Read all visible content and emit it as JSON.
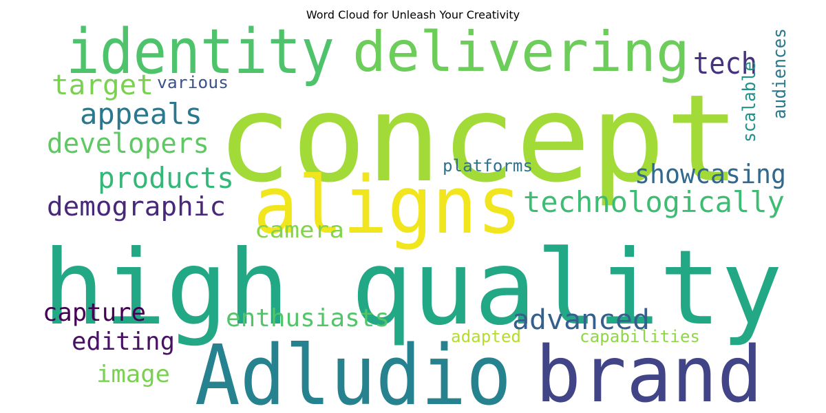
{
  "chart_data": {
    "type": "wordcloud",
    "title": "Word Cloud for Unleash Your Creativity",
    "words": [
      {
        "text": "concept",
        "color": "#a2da37"
      },
      {
        "text": "high quality",
        "color": "#22a884"
      },
      {
        "text": "identity",
        "color": "#4ec36b"
      },
      {
        "text": "delivering",
        "color": "#6ccd5a"
      },
      {
        "text": "aligns",
        "color": "#f1e51d"
      },
      {
        "text": "Adludio",
        "color": "#26828e"
      },
      {
        "text": "brand",
        "color": "#414487"
      },
      {
        "text": "tech",
        "color": "#46327e"
      },
      {
        "text": "target",
        "color": "#7ad151"
      },
      {
        "text": "various",
        "color": "#3b528b"
      },
      {
        "text": "appeals",
        "color": "#2a788e"
      },
      {
        "text": "developers",
        "color": "#5ec962"
      },
      {
        "text": "products",
        "color": "#35b779"
      },
      {
        "text": "demographic",
        "color": "#482878"
      },
      {
        "text": "showcasing",
        "color": "#31688e"
      },
      {
        "text": "technologically",
        "color": "#3fbc73"
      },
      {
        "text": "platforms",
        "color": "#2c728e"
      },
      {
        "text": "camera",
        "color": "#84d44b"
      },
      {
        "text": "scalable",
        "color": "#21918c"
      },
      {
        "text": "audiences",
        "color": "#2a788e"
      },
      {
        "text": "capture",
        "color": "#440154"
      },
      {
        "text": "enthusiasts",
        "color": "#52c569"
      },
      {
        "text": "advanced",
        "color": "#355f8d"
      },
      {
        "text": "editing",
        "color": "#471164"
      },
      {
        "text": "adapted",
        "color": "#b5de2b"
      },
      {
        "text": "capabilities",
        "color": "#8fd744"
      },
      {
        "text": "image",
        "color": "#7ad151"
      }
    ]
  }
}
